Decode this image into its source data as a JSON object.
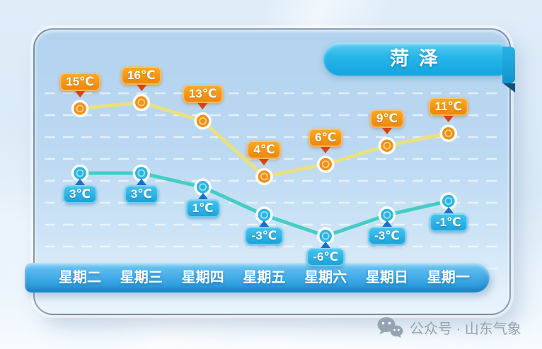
{
  "header": {
    "city_badge": "菏泽"
  },
  "chart_data": {
    "type": "line",
    "title": "菏泽",
    "categories": [
      "星期二",
      "星期三",
      "星期四",
      "星期五",
      "星期六",
      "星期日",
      "星期一"
    ],
    "series": [
      {
        "name": "high",
        "unit": "℃",
        "values": [
          15,
          16,
          13,
          4,
          6,
          9,
          11
        ],
        "labels": [
          "15℃",
          "16℃",
          "13℃",
          "4℃",
          "6℃",
          "9℃",
          "11℃"
        ],
        "label_position": "above",
        "line_color": "#ece07e",
        "point_color": "#f29012",
        "label_bg": "#f19410",
        "pointer_color": "#d8430e"
      },
      {
        "name": "low",
        "unit": "℃",
        "values": [
          3,
          3,
          1,
          -3,
          -6,
          -3,
          -1
        ],
        "labels": [
          "3℃",
          "3℃",
          "1℃",
          "-3℃",
          "-6℃",
          "-3℃",
          "-1℃"
        ],
        "label_position": "below",
        "line_color": "#44cdc6",
        "point_color": "#29b5e2",
        "label_bg": "#2cb0e2",
        "pointer_color": "#1e6ed0"
      }
    ],
    "ylim_high": [
      4,
      16
    ],
    "ylim_low": [
      -6,
      3
    ],
    "grid": "dashed-horizontal-white",
    "legend": "none",
    "x_axis": "day-bar-bottom"
  },
  "footer": {
    "label": "公众号 · 山东气象",
    "icon": "wechat-icon"
  },
  "colors": {
    "ribbon": "#1fb0e6",
    "day_bar_top": "#67c3f3",
    "day_bar_bottom": "#2094da",
    "panel_top": "#b2d2ee",
    "panel_bottom": "#eaf5fc",
    "footer_text": "#94a3b1"
  }
}
